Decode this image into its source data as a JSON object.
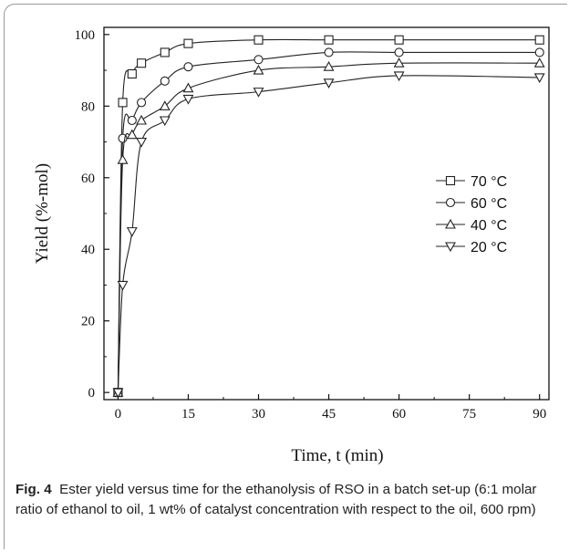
{
  "chart_data": {
    "type": "scatter",
    "xlabel": "Time, t (min)",
    "ylabel": "Yield (%-mol)",
    "xlim": [
      -3,
      92
    ],
    "ylim": [
      -2,
      102
    ],
    "xticks": [
      0,
      15,
      30,
      45,
      60,
      75,
      90
    ],
    "yticks": [
      0,
      20,
      40,
      60,
      80,
      100
    ],
    "legend_position": "center-right",
    "grid": false,
    "series": [
      {
        "name": "70 °C",
        "marker": "square",
        "x": [
          0,
          1,
          3,
          5,
          10,
          15,
          30,
          45,
          60,
          90
        ],
        "y": [
          0,
          81,
          89,
          92,
          95,
          97.5,
          98.5,
          98.5,
          98.5,
          98.5
        ]
      },
      {
        "name": "60 °C",
        "marker": "circle",
        "x": [
          0,
          1,
          3,
          5,
          10,
          15,
          30,
          45,
          60,
          90
        ],
        "y": [
          0,
          71,
          76,
          81,
          87,
          91,
          93,
          95,
          95,
          95
        ]
      },
      {
        "name": "40 °C",
        "marker": "triangle-up",
        "x": [
          0,
          1,
          3,
          5,
          10,
          15,
          30,
          45,
          60,
          90
        ],
        "y": [
          0,
          65,
          72,
          76,
          80,
          85,
          90,
          91,
          92,
          92
        ]
      },
      {
        "name": "20 °C",
        "marker": "triangle-down",
        "x": [
          0,
          1,
          3,
          5,
          10,
          15,
          30,
          45,
          60,
          90
        ],
        "y": [
          0,
          30,
          45,
          70,
          76,
          82,
          84,
          86.5,
          88.5,
          88
        ]
      }
    ]
  },
  "caption": {
    "label": "Fig. 4",
    "text": "Ester yield versus time for the ethanolysis of RSO in a batch set-up (6:1 molar ratio of ethanol to oil, 1 wt% of catalyst concentration with respect to the oil, 600 rpm)"
  }
}
